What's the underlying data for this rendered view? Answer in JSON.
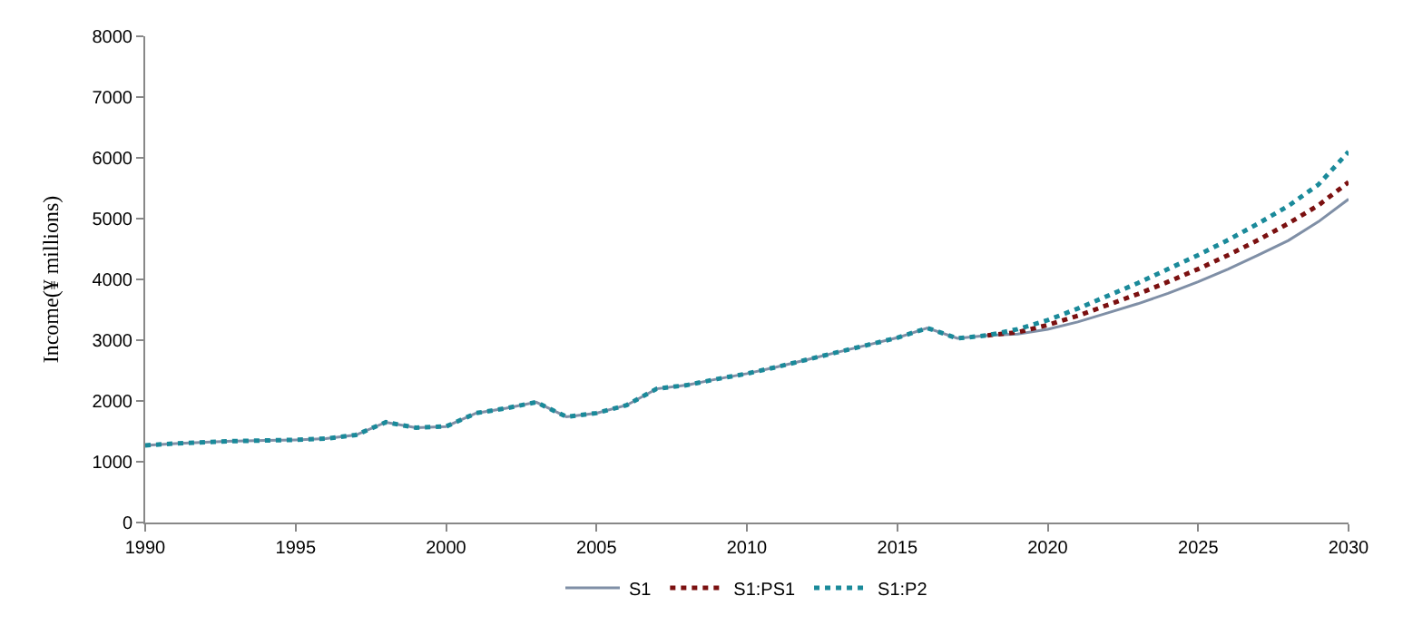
{
  "chart_data": {
    "type": "line",
    "ylabel": "Income(¥ millions)",
    "x": [
      1990,
      1991,
      1992,
      1993,
      1994,
      1995,
      1996,
      1997,
      1998,
      1999,
      2000,
      2001,
      2002,
      2003,
      2004,
      2005,
      2006,
      2007,
      2008,
      2009,
      2010,
      2011,
      2012,
      2013,
      2014,
      2015,
      2016,
      2017,
      2018,
      2019,
      2020,
      2021,
      2022,
      2023,
      2024,
      2025,
      2026,
      2027,
      2028,
      2029,
      2030
    ],
    "series": [
      {
        "name": "S1",
        "color": "#7f8fa6",
        "line_style": "solid",
        "values": [
          1270,
          1300,
          1320,
          1340,
          1350,
          1360,
          1380,
          1440,
          1650,
          1560,
          1580,
          1800,
          1880,
          1980,
          1740,
          1800,
          1930,
          2200,
          2260,
          2360,
          2450,
          2560,
          2680,
          2800,
          2920,
          3040,
          3200,
          3030,
          3080,
          3100,
          3180,
          3300,
          3450,
          3600,
          3770,
          3960,
          4170,
          4400,
          4640,
          4950,
          5320
        ]
      },
      {
        "name": "S1:PS1",
        "color": "#7b1010",
        "line_style": "dotted",
        "values": [
          null,
          null,
          null,
          null,
          null,
          null,
          null,
          null,
          null,
          null,
          null,
          null,
          null,
          null,
          null,
          null,
          null,
          null,
          null,
          null,
          null,
          null,
          null,
          null,
          null,
          null,
          null,
          null,
          3080,
          3130,
          3250,
          3400,
          3580,
          3760,
          3960,
          4170,
          4400,
          4650,
          4920,
          5220,
          5600
        ]
      },
      {
        "name": "S1:P2",
        "color": "#1a8a9a",
        "line_style": "dotted",
        "values": [
          1270,
          1300,
          1320,
          1340,
          1350,
          1360,
          1380,
          1440,
          1650,
          1560,
          1580,
          1800,
          1880,
          1980,
          1740,
          1800,
          1930,
          2200,
          2260,
          2360,
          2450,
          2560,
          2680,
          2800,
          2920,
          3040,
          3200,
          3030,
          3080,
          3180,
          3330,
          3520,
          3730,
          3940,
          4170,
          4400,
          4650,
          4920,
          5210,
          5560,
          6100
        ]
      }
    ],
    "xlim": [
      1990,
      2030
    ],
    "xticks": [
      1990,
      1995,
      2000,
      2005,
      2010,
      2015,
      2020,
      2025,
      2030
    ],
    "ylim": [
      0,
      8000
    ],
    "yticks": [
      0,
      1000,
      2000,
      3000,
      4000,
      5000,
      6000,
      7000,
      8000
    ],
    "legend": "bottom",
    "marker": "none"
  }
}
